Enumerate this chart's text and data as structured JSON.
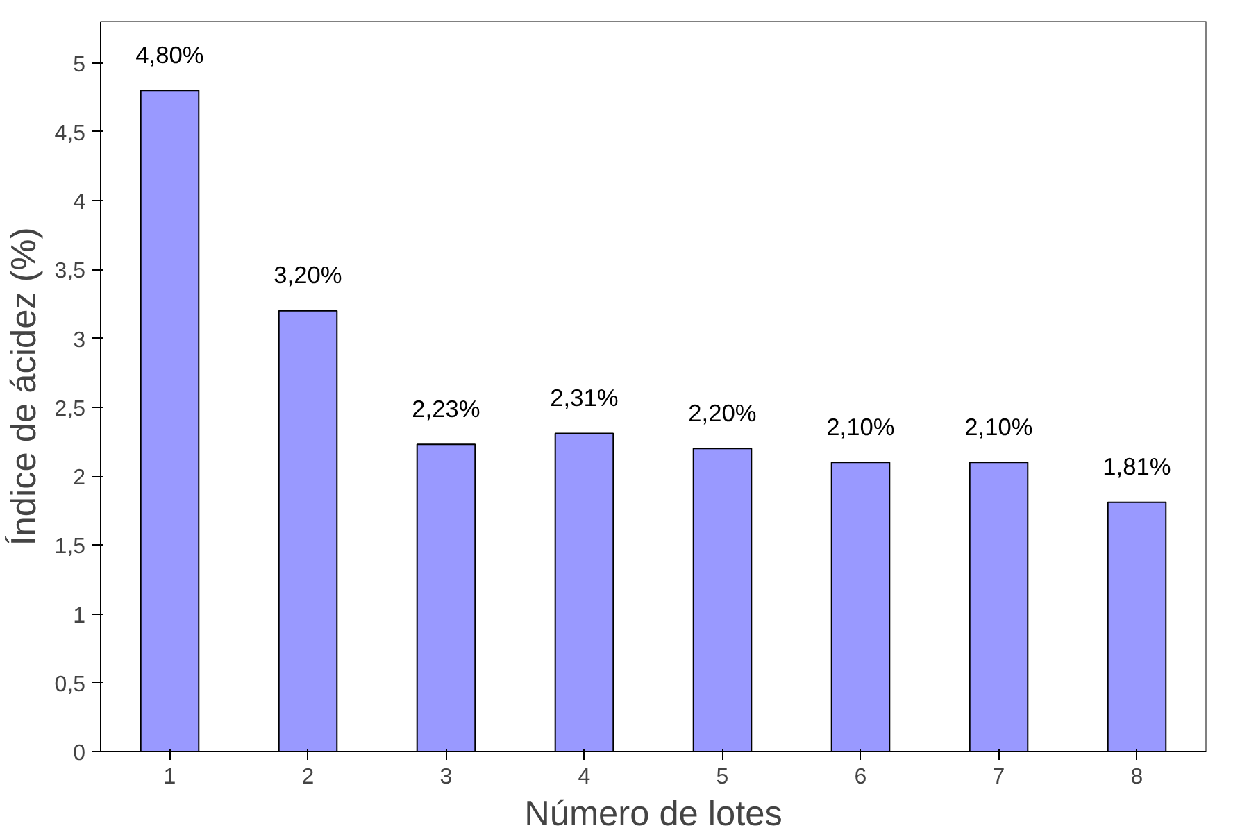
{
  "chart_data": {
    "type": "bar",
    "xlabel": "Número de lotes",
    "ylabel": "Índice de ácidez (%)",
    "categories": [
      "1",
      "2",
      "3",
      "4",
      "5",
      "6",
      "7",
      "8"
    ],
    "values": [
      4.8,
      3.2,
      2.23,
      2.31,
      2.2,
      2.1,
      2.1,
      1.81
    ],
    "value_labels": [
      "4,80%",
      "3,20%",
      "2,23%",
      "2,31%",
      "2,20%",
      "2,10%",
      "2,10%",
      "1,81%"
    ],
    "color": "#9999ff",
    "ylim": [
      0,
      5.3
    ],
    "yticks": [
      0,
      {
        "value": 0.5,
        "label": "0,5"
      },
      1,
      {
        "value": 1.5,
        "label": "1,5"
      },
      2,
      {
        "value": 2.5,
        "label": "2,5"
      },
      3,
      {
        "value": 3.5,
        "label": "3,5"
      },
      4,
      {
        "value": 4.5,
        "label": "4,5"
      },
      5
    ],
    "grid": false
  }
}
